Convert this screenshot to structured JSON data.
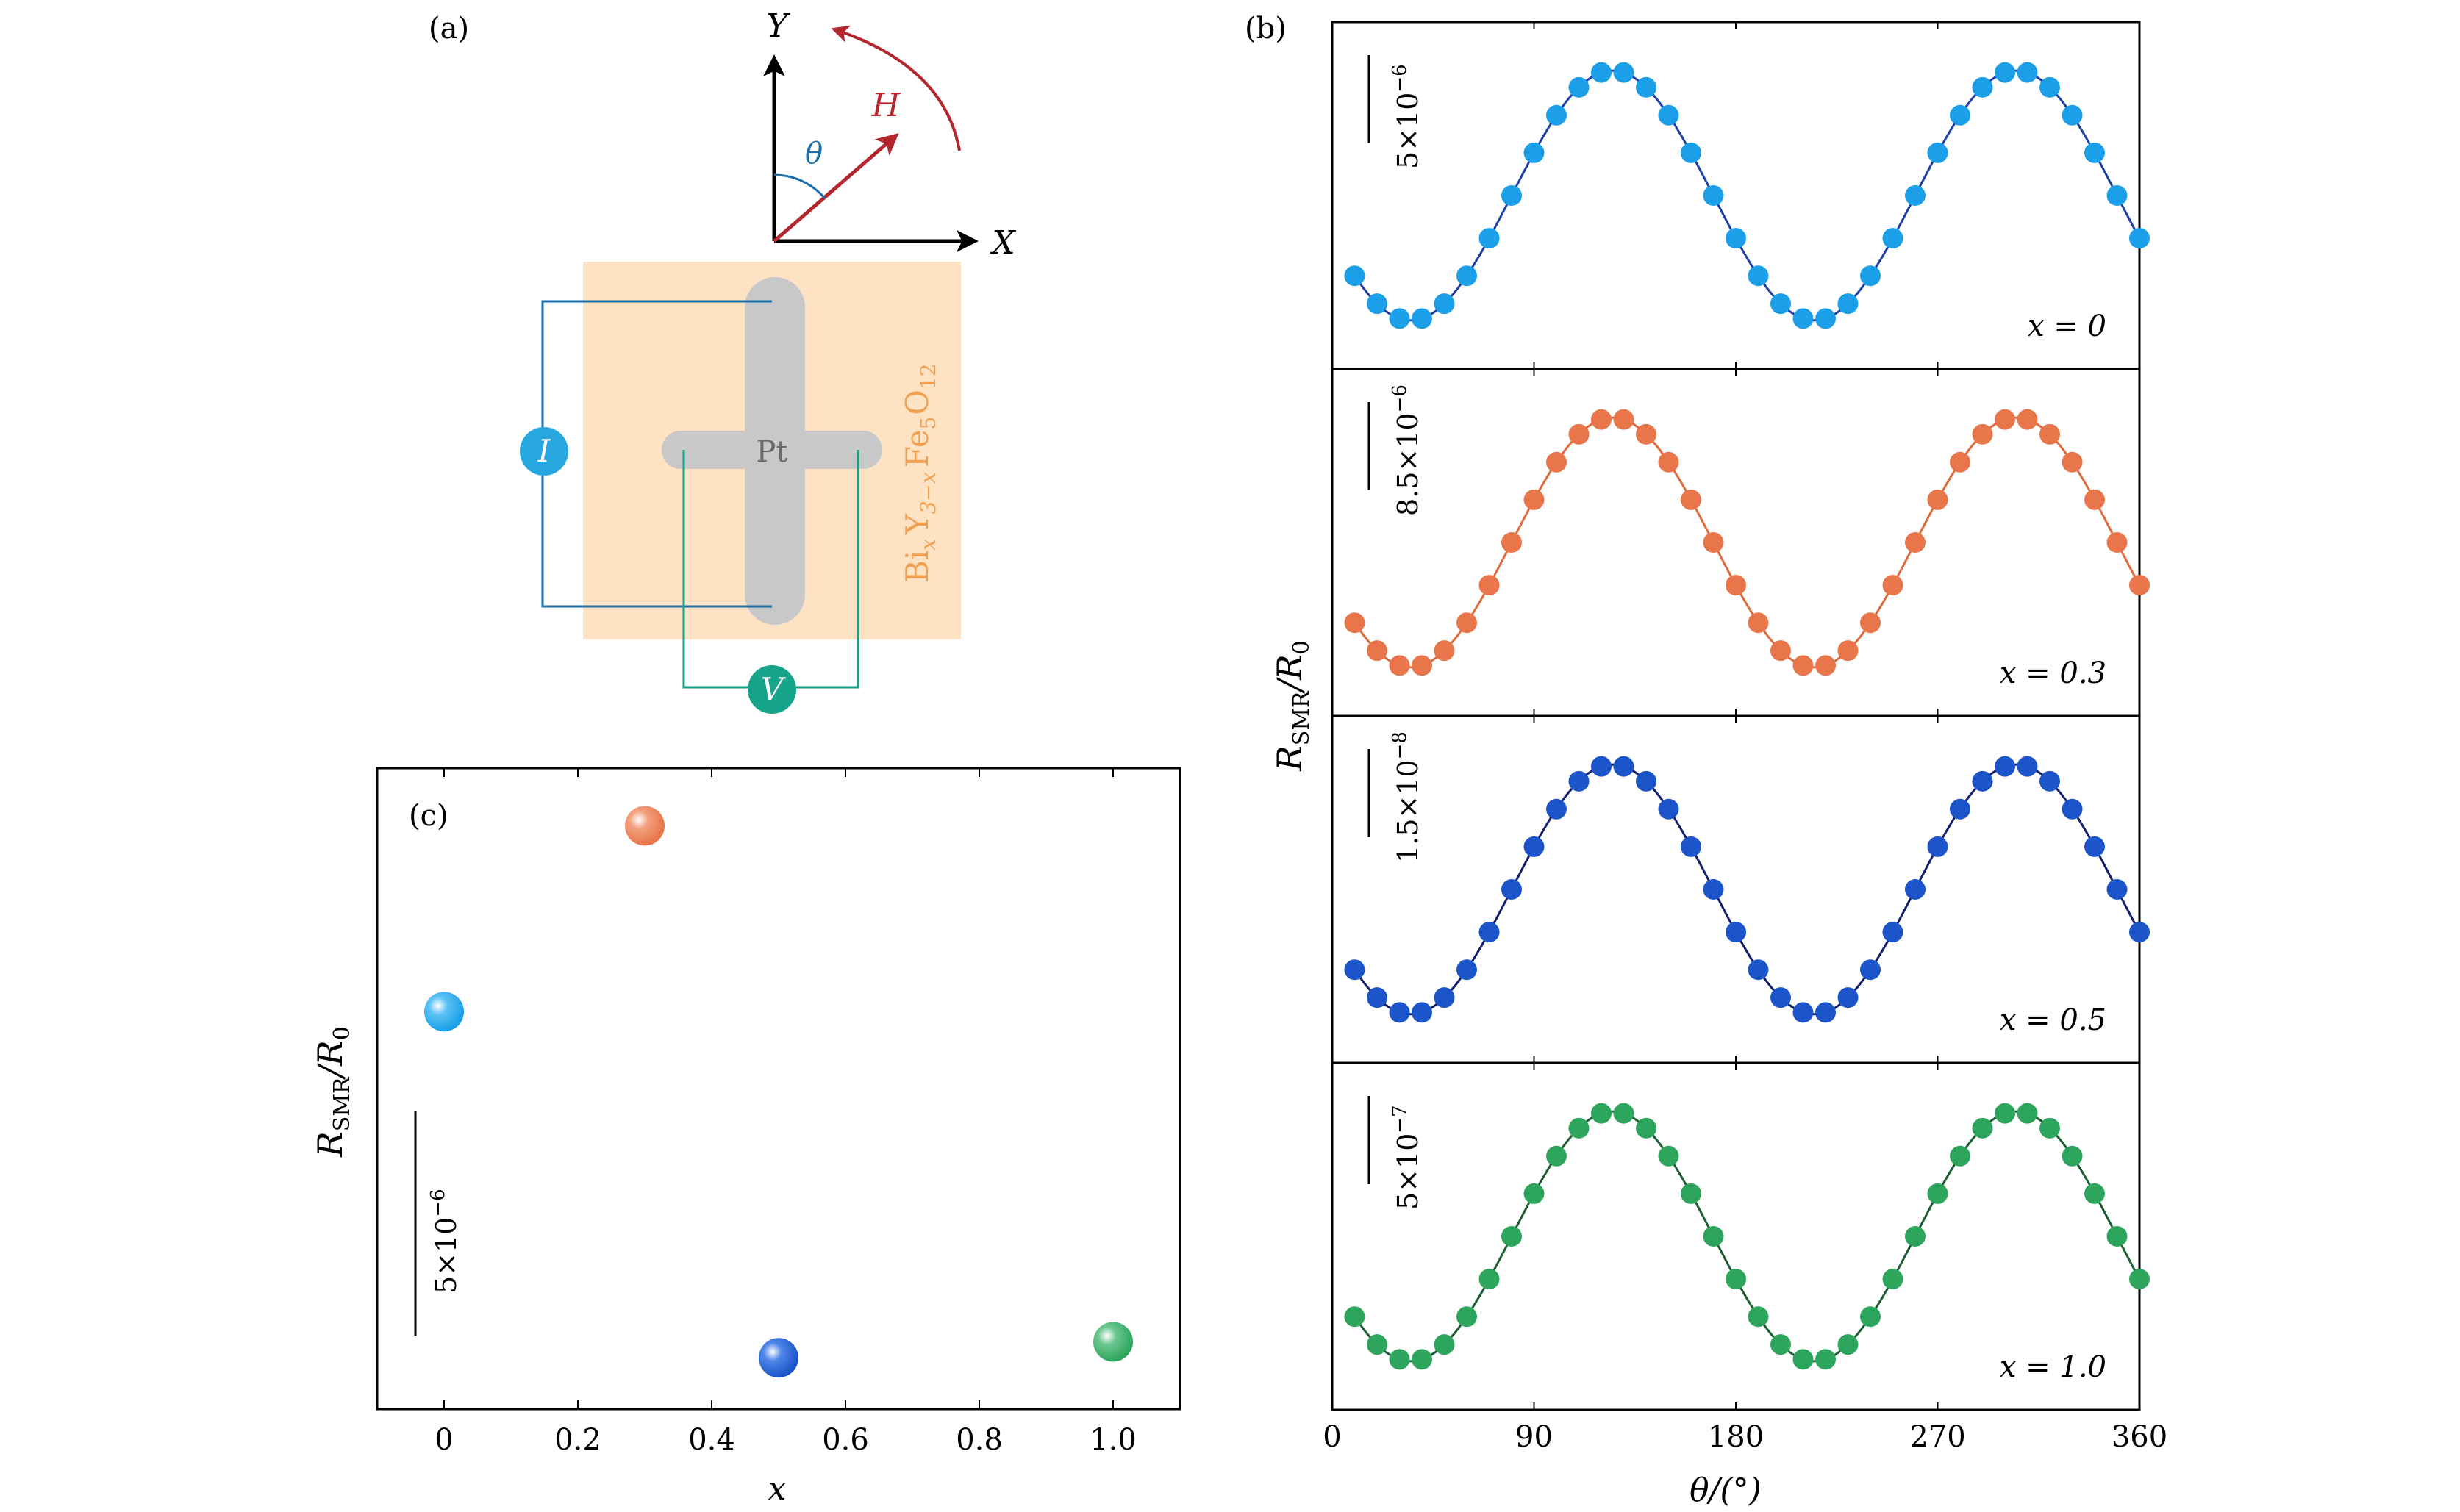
{
  "colors": {
    "blue": "#1a9fe8",
    "orange": "#e8764a",
    "navy": "#1b55c9",
    "green": "#2ea55c",
    "substrate": "#fde2c3",
    "pt": "#c8c8c8",
    "substrate_text": "#f0a050",
    "I_line": "#1a6fa8",
    "V_line": "#17a085",
    "arrow_red": "#b3262e",
    "theta_blue": "#1a6fa8"
  },
  "panel_a": {
    "label": "(a)",
    "axis_y": "Y",
    "axis_x": "X",
    "field": "H",
    "angle": "θ",
    "metal": "Pt",
    "current": "I",
    "voltage": "V",
    "substrate_name": "Bi",
    "substrate_sub_x": "x",
    "substrate_y": "Y",
    "substrate_sub_3x": "3−x",
    "substrate_fe": "Fe",
    "substrate_sub_5": "5",
    "substrate_o": "O",
    "substrate_sub_12": "12"
  },
  "chart_data": [
    {
      "panel": "(b)",
      "type": "scatter",
      "fit": "sinusoid",
      "xlabel": "θ/(°)",
      "ylabel": "R_SMR/R_0",
      "ylabel_main": "R",
      "ylabel_sub": "SMR",
      "ylabel_rest": "/R",
      "ylabel_sub0": "0",
      "xlim": [
        0,
        360
      ],
      "xticks": [
        0,
        90,
        180,
        270,
        360
      ],
      "series": [
        {
          "name": "x = 0",
          "scale_bar": "5×10",
          "scale_exp": "−6",
          "color_key": "blue",
          "curve_color": "#1d3fa8",
          "x": [
            10,
            20,
            30,
            40,
            50,
            60,
            70,
            80,
            90,
            100,
            110,
            120,
            130,
            140,
            150,
            160,
            170,
            180,
            190,
            200,
            210,
            220,
            230,
            240,
            250,
            260,
            270,
            280,
            290,
            300,
            310,
            320,
            330,
            340,
            350,
            360
          ]
        },
        {
          "name": "x = 0.3",
          "scale_bar": "8.5×10",
          "scale_exp": "−6",
          "color_key": "orange",
          "curve_color": "#e06a3c",
          "x": [
            10,
            20,
            30,
            40,
            50,
            60,
            70,
            80,
            90,
            100,
            110,
            120,
            130,
            140,
            150,
            160,
            170,
            180,
            190,
            200,
            210,
            220,
            230,
            240,
            250,
            260,
            270,
            280,
            290,
            300,
            310,
            320,
            330,
            340,
            350,
            360
          ]
        },
        {
          "name": "x = 0.5",
          "scale_bar": "1.5×10",
          "scale_exp": "−8",
          "color_key": "navy",
          "curve_color": "#101f6e",
          "x": [
            10,
            20,
            30,
            40,
            50,
            60,
            70,
            80,
            90,
            100,
            110,
            120,
            130,
            140,
            150,
            160,
            170,
            180,
            190,
            200,
            210,
            220,
            230,
            240,
            250,
            260,
            270,
            280,
            290,
            300,
            310,
            320,
            330,
            340,
            350,
            360
          ]
        },
        {
          "name": "x = 1.0",
          "scale_bar": "5×10",
          "scale_exp": "−7",
          "color_key": "green",
          "curve_color": "#1b5e34",
          "x": [
            10,
            20,
            30,
            40,
            50,
            60,
            70,
            80,
            90,
            100,
            110,
            120,
            130,
            140,
            150,
            160,
            170,
            180,
            190,
            200,
            210,
            220,
            230,
            240,
            250,
            260,
            270,
            280,
            290,
            300,
            310,
            320,
            330,
            340,
            350,
            360
          ]
        }
      ],
      "legend": [
        "x = 0",
        "x = 0.3",
        "x = 0.5",
        "x = 1.0"
      ]
    },
    {
      "panel": "(c)",
      "type": "scatter",
      "xlabel": "x",
      "ylabel_main": "R",
      "ylabel_sub": "SMR",
      "ylabel_rest": "/R",
      "ylabel_sub0": "0",
      "xlim": [
        -0.1,
        1.1
      ],
      "xticks": [
        0,
        0.2,
        0.4,
        0.6,
        0.8,
        1.0
      ],
      "xtick_labels": [
        "0",
        "0.2",
        "0.4",
        "0.6",
        "0.8",
        "1.0"
      ],
      "ylim": [
        0,
        1
      ],
      "scale_bar": "5×10",
      "scale_exp": "−6",
      "points": [
        {
          "x": 0.0,
          "y": 0.62,
          "color_key": "blue"
        },
        {
          "x": 0.3,
          "y": 0.91,
          "color_key": "orange"
        },
        {
          "x": 0.5,
          "y": 0.08,
          "color_key": "navy"
        },
        {
          "x": 1.0,
          "y": 0.105,
          "color_key": "green"
        }
      ]
    }
  ]
}
